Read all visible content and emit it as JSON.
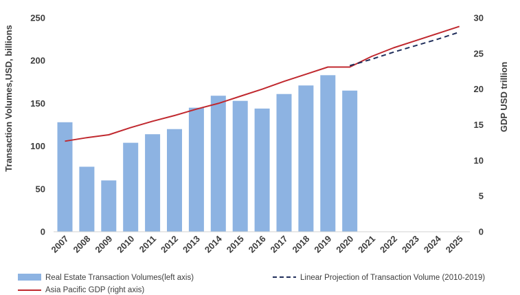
{
  "chart_data": {
    "type": "bar",
    "categories": [
      "2007",
      "2008",
      "2009",
      "2010",
      "2011",
      "2012",
      "2013",
      "2014",
      "2015",
      "2016",
      "2017",
      "2018",
      "2019",
      "2020",
      "2021",
      "2022",
      "2023",
      "2024",
      "2025"
    ],
    "ylabel_left": "Transaction Volumes,USD, billions",
    "ylabel_right": "GDP USD trillion",
    "ylim_left": [
      0,
      250
    ],
    "ylim_right": [
      0,
      30
    ],
    "yticks_left": [
      0,
      50,
      100,
      150,
      200,
      250
    ],
    "yticks_right": [
      0,
      5,
      10,
      15,
      20,
      25,
      30
    ],
    "grid": false,
    "legend_position": "bottom",
    "series": [
      {
        "name": "Real Estate Transaction Volumes(left axis)",
        "type": "bar",
        "axis": "left",
        "color": "#8db3e2",
        "values": [
          128,
          76,
          60,
          104,
          114,
          120,
          145,
          159,
          153,
          144,
          161,
          171,
          183,
          165,
          null,
          null,
          null,
          null,
          null
        ]
      },
      {
        "name": "Asia Pacific GDP (right axis)",
        "type": "line",
        "axis": "right",
        "color": "#c0282e",
        "values": [
          12.7,
          13.2,
          13.6,
          14.6,
          15.5,
          16.3,
          17.2,
          18.0,
          19.0,
          20.0,
          21.1,
          22.1,
          23.1,
          23.1,
          24.6,
          25.8,
          26.8,
          27.8,
          28.8
        ]
      },
      {
        "name": "Linear Projection of Transaction Volume (2010-2019)",
        "type": "line",
        "style": "dashed",
        "axis": "right",
        "color": "#1f2d5a",
        "values": [
          null,
          null,
          null,
          null,
          null,
          null,
          null,
          null,
          null,
          null,
          null,
          null,
          null,
          23.3,
          24.2,
          25.2,
          26.1,
          27.0,
          28.0
        ]
      }
    ]
  }
}
